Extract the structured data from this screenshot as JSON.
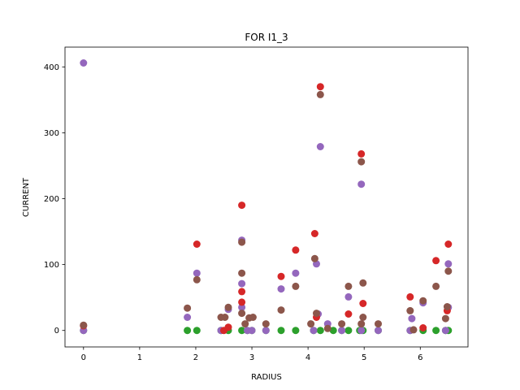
{
  "chart_data": {
    "type": "scatter",
    "title": "FOR  I1_3",
    "xlabel": "RADIUS",
    "ylabel": "CURRENT",
    "xlim": [
      -0.33,
      6.85
    ],
    "ylim": [
      -25,
      430
    ],
    "xticks": [
      0,
      1,
      2,
      3,
      4,
      5,
      6
    ],
    "yticks": [
      0,
      100,
      200,
      300,
      400
    ],
    "grid": false,
    "legend": "none",
    "series": [
      {
        "color": "#2ca02c",
        "points": [
          [
            0,
            0
          ],
          [
            1.85,
            0
          ],
          [
            2.02,
            0
          ],
          [
            2.45,
            0
          ],
          [
            2.58,
            0
          ],
          [
            2.82,
            0
          ],
          [
            2.92,
            0
          ],
          [
            3.0,
            0
          ],
          [
            3.25,
            0
          ],
          [
            3.52,
            0
          ],
          [
            3.78,
            0
          ],
          [
            4.1,
            0
          ],
          [
            4.22,
            0
          ],
          [
            4.45,
            0
          ],
          [
            4.6,
            0
          ],
          [
            4.72,
            0
          ],
          [
            4.92,
            0
          ],
          [
            4.98,
            0
          ],
          [
            5.25,
            0
          ],
          [
            5.82,
            0
          ],
          [
            6.05,
            0
          ],
          [
            6.28,
            0
          ],
          [
            6.45,
            0
          ],
          [
            6.5,
            0
          ]
        ]
      },
      {
        "color": "#9467bd",
        "points": [
          [
            0,
            406
          ],
          [
            0,
            0
          ],
          [
            1.85,
            20
          ],
          [
            2.02,
            87
          ],
          [
            2.45,
            0
          ],
          [
            2.58,
            32
          ],
          [
            2.82,
            137
          ],
          [
            2.82,
            71
          ],
          [
            2.82,
            35
          ],
          [
            2.92,
            0
          ],
          [
            3.0,
            0
          ],
          [
            3.25,
            0
          ],
          [
            3.52,
            63
          ],
          [
            3.78,
            87
          ],
          [
            4.1,
            0
          ],
          [
            4.15,
            101
          ],
          [
            4.18,
            25
          ],
          [
            4.22,
            279
          ],
          [
            4.35,
            10
          ],
          [
            4.6,
            0
          ],
          [
            4.72,
            51
          ],
          [
            4.95,
            222
          ],
          [
            4.95,
            0
          ],
          [
            5.25,
            0
          ],
          [
            5.82,
            0
          ],
          [
            5.85,
            18
          ],
          [
            6.05,
            42
          ],
          [
            6.45,
            0
          ],
          [
            6.5,
            101
          ],
          [
            6.5,
            35
          ]
        ]
      },
      {
        "color": "#d62728",
        "points": [
          [
            0,
            7
          ],
          [
            2.02,
            131
          ],
          [
            2.5,
            0
          ],
          [
            2.58,
            5
          ],
          [
            2.82,
            190
          ],
          [
            2.82,
            59
          ],
          [
            2.82,
            43
          ],
          [
            3.52,
            82
          ],
          [
            3.78,
            122
          ],
          [
            4.12,
            147
          ],
          [
            4.15,
            20
          ],
          [
            4.22,
            370
          ],
          [
            4.72,
            25
          ],
          [
            4.95,
            268
          ],
          [
            4.98,
            41
          ],
          [
            5.82,
            51
          ],
          [
            6.05,
            4
          ],
          [
            6.28,
            106
          ],
          [
            6.48,
            30
          ],
          [
            6.5,
            131
          ]
        ]
      },
      {
        "color": "#8c564b",
        "points": [
          [
            0,
            8
          ],
          [
            1.85,
            34
          ],
          [
            2.02,
            77
          ],
          [
            2.45,
            20
          ],
          [
            2.52,
            20
          ],
          [
            2.58,
            35
          ],
          [
            2.82,
            134
          ],
          [
            2.82,
            87
          ],
          [
            2.82,
            26
          ],
          [
            2.88,
            10
          ],
          [
            2.95,
            19
          ],
          [
            3.02,
            20
          ],
          [
            3.25,
            10
          ],
          [
            3.52,
            31
          ],
          [
            3.78,
            67
          ],
          [
            4.05,
            10
          ],
          [
            4.12,
            109
          ],
          [
            4.15,
            26
          ],
          [
            4.22,
            358
          ],
          [
            4.35,
            3
          ],
          [
            4.6,
            10
          ],
          [
            4.72,
            67
          ],
          [
            4.95,
            256
          ],
          [
            4.95,
            10
          ],
          [
            4.98,
            72
          ],
          [
            4.98,
            20
          ],
          [
            5.25,
            10
          ],
          [
            5.82,
            30
          ],
          [
            5.88,
            1
          ],
          [
            6.05,
            45
          ],
          [
            6.28,
            67
          ],
          [
            6.45,
            18
          ],
          [
            6.48,
            36
          ],
          [
            6.5,
            90
          ]
        ]
      }
    ]
  }
}
